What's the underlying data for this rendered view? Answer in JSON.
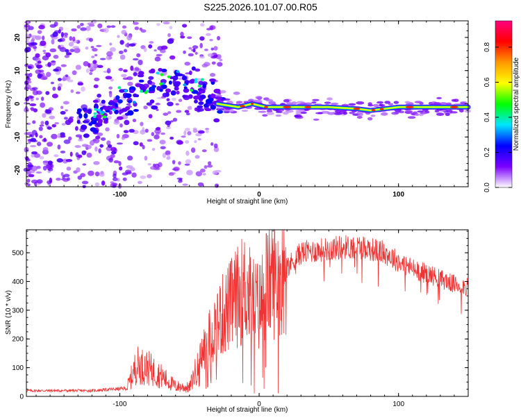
{
  "title": "S225.2026.101.07.00.R05",
  "chart_data": [
    {
      "type": "heatmap",
      "xlabel": "Height of straight line (km)",
      "ylabel": "Frequency (Hz)",
      "xlim": [
        -167,
        150
      ],
      "ylim": [
        -25,
        25
      ],
      "xticks": [
        -100,
        0,
        100
      ],
      "yticks": [
        -20,
        -10,
        0,
        10,
        20
      ],
      "colorbar": {
        "label": "Normalized spectral amplitude",
        "range": [
          0,
          0.95
        ],
        "ticks": [
          0.0,
          0.2,
          0.4,
          0.6,
          0.8
        ],
        "tick_labels": [
          "0.0",
          "0.2",
          "0.4",
          "0.6",
          "0.8"
        ],
        "colors": [
          "#ffffff",
          "#7a00ff",
          "#0000ff",
          "#00e5ff",
          "#00ff00",
          "#ffff00",
          "#ff9900",
          "#ff0000",
          "#ff0080"
        ]
      },
      "ridge": {
        "x": [
          -130,
          -110,
          -90,
          -70,
          -55,
          -45,
          -30,
          -15,
          -5,
          5,
          15,
          30,
          50,
          70,
          80,
          90,
          100,
          120,
          150
        ],
        "freq": [
          -4,
          -3,
          2,
          6,
          6,
          4,
          0,
          -1,
          0,
          -1,
          -1,
          -1,
          -1,
          -1.5,
          -2,
          -1.5,
          -1,
          -1,
          -1
        ]
      }
    },
    {
      "type": "line",
      "xlabel": "Height of straight line (km)",
      "ylabel": "SNR (10 * v/v)",
      "xlim": [
        -167,
        150
      ],
      "ylim": [
        0,
        580
      ],
      "xticks": [
        -100,
        0,
        100
      ],
      "yticks": [
        0,
        100,
        200,
        300,
        400,
        500
      ],
      "color": "#ee3333",
      "envelope": {
        "x": [
          -167,
          -120,
          -95,
          -88,
          -80,
          -70,
          -60,
          -50,
          -40,
          -30,
          -20,
          -10,
          -5,
          0,
          5,
          10,
          20,
          30,
          45,
          60,
          75,
          90,
          100,
          110,
          125,
          140,
          150
        ],
        "y": [
          20,
          20,
          28,
          110,
          100,
          70,
          35,
          30,
          160,
          260,
          320,
          380,
          330,
          310,
          390,
          410,
          450,
          500,
          510,
          520,
          520,
          500,
          470,
          445,
          420,
          390,
          380
        ]
      }
    }
  ]
}
